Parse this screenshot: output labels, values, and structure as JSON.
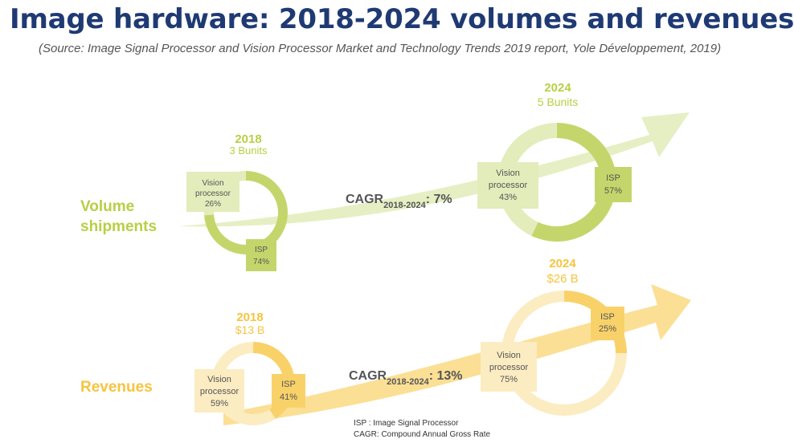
{
  "header": {
    "title": "Image hardware: 2018-2024 volumes and revenues",
    "source": "(Source: Image Signal Processor and Vision Processor Market and Technology Trends 2019 report, Yole Développement, 2019)"
  },
  "colors": {
    "title": "#1f3a73",
    "volume_accent": "#b8cf45",
    "volume_isp": "#c4d66b",
    "volume_vision": "#e3ecbb",
    "volume_arrow": "#e6efc3",
    "revenue_accent": "#f6c43f",
    "revenue_isp": "#f8d269",
    "revenue_vision": "#fcecc2",
    "revenue_arrow": "#fbdf94"
  },
  "chart_data": [
    {
      "type": "pie",
      "row": "Volume shipments",
      "row_label_line1": "Volume",
      "row_label_line2": "shipments",
      "cagr_label": "CAGR",
      "cagr_period": "2018-2024",
      "cagr_value": ": 7%",
      "years": [
        {
          "year": "2018",
          "total": "3 Bunits",
          "slices": [
            {
              "label": "ISP",
              "value": 74,
              "value_text": "74%"
            },
            {
              "label_line1": "Vision",
              "label_line2": "processor",
              "value": 26,
              "value_text": "26%"
            }
          ]
        },
        {
          "year": "2024",
          "total": "5 Bunits",
          "slices": [
            {
              "label": "ISP",
              "value": 57,
              "value_text": "57%"
            },
            {
              "label_line1": "Vision",
              "label_line2": "processor",
              "value": 43,
              "value_text": "43%"
            }
          ]
        }
      ]
    },
    {
      "type": "pie",
      "row": "Revenues",
      "row_label_line1": "Revenues",
      "cagr_label": "CAGR",
      "cagr_period": "2018-2024",
      "cagr_value": ": 13%",
      "years": [
        {
          "year": "2018",
          "total": "$13 B",
          "slices": [
            {
              "label": "ISP",
              "value": 41,
              "value_text": "41%"
            },
            {
              "label_line1": "Vision",
              "label_line2": "processor",
              "value": 59,
              "value_text": "59%"
            }
          ]
        },
        {
          "year": "2024",
          "total": "$26 B",
          "slices": [
            {
              "label": "ISP",
              "value": 25,
              "value_text": "25%"
            },
            {
              "label_line1": "Vision",
              "label_line2": "processor",
              "value": 75,
              "value_text": "75%"
            }
          ]
        }
      ]
    }
  ],
  "legend": {
    "isp": "ISP : Image Signal Processor",
    "cagr": "CAGR: Compound Annual Gross Rate"
  }
}
